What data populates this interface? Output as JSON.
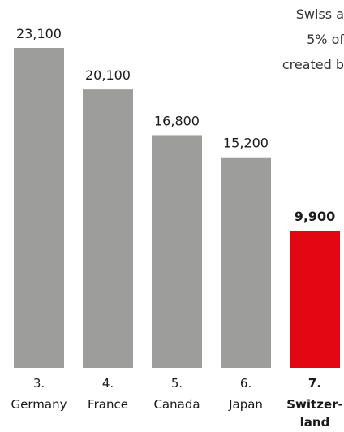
{
  "chart_data": {
    "type": "bar",
    "series": [
      {
        "values": [
          23100,
          20100,
          16800,
          15200,
          9900
        ],
        "value_labels": [
          "23,100",
          "20,100",
          "16,800",
          "15,200",
          "9,900"
        ],
        "rank_labels": [
          "3.",
          "4.",
          "5.",
          "6.",
          "7."
        ],
        "name_labels": [
          [
            "Germany"
          ],
          [
            "France"
          ],
          [
            "Canada"
          ],
          [
            "Japan"
          ],
          [
            "Switzer-",
            "land"
          ]
        ],
        "highlight": [
          false,
          false,
          false,
          false,
          true
        ]
      }
    ],
    "ylim": [
      0,
      23100
    ],
    "grid": false,
    "colors": {
      "bar": "#9d9d9c",
      "highlight": "#e30613"
    }
  },
  "annotation": {
    "lines": [
      "Swiss a",
      "5% of",
      "created b"
    ]
  }
}
